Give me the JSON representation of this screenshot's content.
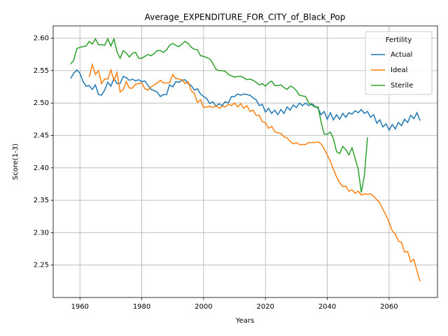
{
  "chart_data": {
    "type": "line",
    "title": "Average_EXPENDITURE_FOR_CITY_of_Black_Pop",
    "x_label": "Years",
    "y_label": "Score(1-3)",
    "legend_title": "Fertility",
    "legend": "upper right",
    "grid": true,
    "x": [
      1957,
      1958,
      1959,
      1960,
      1961,
      1962,
      1963,
      1964,
      1965,
      1966,
      1967,
      1968,
      1969,
      1970,
      1971,
      1972,
      1973,
      1974,
      1975,
      1976,
      1977,
      1978,
      1979,
      1980,
      1981,
      1982,
      1983,
      1984,
      1985,
      1986,
      1987,
      1988,
      1989,
      1990,
      1991,
      1992,
      1993,
      1994,
      1995,
      1996,
      1997,
      1998,
      1999,
      2000,
      2001,
      2002,
      2003,
      2004,
      2005,
      2006,
      2007,
      2008,
      2009,
      2010,
      2011,
      2012,
      2013,
      2014,
      2015,
      2016,
      2017,
      2018,
      2019,
      2020,
      2021,
      2022,
      2023,
      2024,
      2025,
      2026,
      2027,
      2028,
      2029,
      2030,
      2031,
      2032,
      2033,
      2034,
      2035,
      2036,
      2037,
      2038,
      2039,
      2040,
      2041,
      2042,
      2043,
      2044,
      2045,
      2046,
      2047,
      2048,
      2049,
      2050,
      2051,
      2052,
      2053,
      2054,
      2055,
      2056,
      2057,
      2058,
      2059,
      2060,
      2061,
      2062,
      2063,
      2064,
      2065,
      2066,
      2067,
      2068,
      2069,
      2070
    ],
    "series": [
      {
        "name": "Actual",
        "color": "#1f77b4",
        "values": [
          2.538,
          2.546,
          2.551,
          2.546,
          2.533,
          2.526,
          2.527,
          2.521,
          2.528,
          2.513,
          2.512,
          2.52,
          2.532,
          2.526,
          2.538,
          2.53,
          2.53,
          2.541,
          2.539,
          2.535,
          2.537,
          2.534,
          2.536,
          2.533,
          2.534,
          2.527,
          2.521,
          2.519,
          2.517,
          2.51,
          2.513,
          2.513,
          2.528,
          2.525,
          2.533,
          2.532,
          2.535,
          2.536,
          2.53,
          2.527,
          2.52,
          2.522,
          2.514,
          2.51,
          2.507,
          2.499,
          2.502,
          2.495,
          2.499,
          2.496,
          2.502,
          2.5,
          2.51,
          2.51,
          2.514,
          2.512,
          2.514,
          2.513,
          2.512,
          2.508,
          2.505,
          2.496,
          2.498,
          2.486,
          2.492,
          2.484,
          2.489,
          2.482,
          2.49,
          2.484,
          2.494,
          2.489,
          2.497,
          2.493,
          2.5,
          2.496,
          2.5,
          2.496,
          2.499,
          2.495,
          2.492,
          2.482,
          2.487,
          2.475,
          2.485,
          2.474,
          2.482,
          2.475,
          2.484,
          2.478,
          2.485,
          2.483,
          2.488,
          2.485,
          2.49,
          2.484,
          2.487,
          2.478,
          2.482,
          2.469,
          2.474,
          2.463,
          2.468,
          2.458,
          2.467,
          2.46,
          2.47,
          2.465,
          2.475,
          2.47,
          2.481,
          2.476,
          2.485,
          2.473
        ]
      },
      {
        "name": "Ideal",
        "color": "#ff7f0e",
        "values": [
          null,
          null,
          null,
          null,
          null,
          null,
          2.54,
          2.559,
          2.544,
          2.55,
          2.53,
          2.537,
          2.537,
          2.551,
          2.535,
          2.547,
          2.517,
          2.521,
          2.533,
          2.523,
          2.523,
          2.529,
          2.53,
          2.531,
          2.522,
          2.52,
          2.525,
          2.528,
          2.531,
          2.535,
          2.531,
          2.531,
          2.531,
          2.544,
          2.538,
          2.537,
          2.536,
          2.53,
          2.533,
          2.519,
          2.515,
          2.501,
          2.505,
          2.493,
          2.494,
          2.495,
          2.493,
          2.496,
          2.492,
          2.495,
          2.494,
          2.498,
          2.496,
          2.5,
          2.494,
          2.499,
          2.492,
          2.496,
          2.487,
          2.489,
          2.481,
          2.481,
          2.471,
          2.47,
          2.461,
          2.464,
          2.456,
          2.454,
          2.453,
          2.448,
          2.446,
          2.441,
          2.437,
          2.439,
          2.436,
          2.436,
          2.436,
          2.439,
          2.439,
          2.439,
          2.44,
          2.437,
          2.429,
          2.42,
          2.41,
          2.398,
          2.386,
          2.377,
          2.371,
          2.372,
          2.364,
          2.366,
          2.361,
          2.364,
          2.358,
          2.36,
          2.359,
          2.36,
          2.356,
          2.351,
          2.346,
          2.336,
          2.327,
          2.316,
          2.303,
          2.298,
          2.287,
          2.285,
          2.27,
          2.271,
          2.255,
          2.259,
          2.241,
          2.225
        ]
      },
      {
        "name": "Sterile",
        "color": "#2ca02c",
        "values": [
          2.56,
          2.566,
          2.584,
          2.586,
          2.587,
          2.588,
          2.595,
          2.591,
          2.599,
          2.59,
          2.59,
          2.589,
          2.599,
          2.588,
          2.599,
          2.579,
          2.569,
          2.581,
          2.577,
          2.571,
          2.577,
          2.578,
          2.569,
          2.569,
          2.572,
          2.575,
          2.573,
          2.576,
          2.581,
          2.581,
          2.578,
          2.582,
          2.589,
          2.592,
          2.589,
          2.587,
          2.591,
          2.595,
          2.592,
          2.586,
          2.583,
          2.582,
          2.573,
          2.572,
          2.57,
          2.568,
          2.561,
          2.552,
          2.55,
          2.55,
          2.549,
          2.544,
          2.542,
          2.54,
          2.541,
          2.541,
          2.539,
          2.536,
          2.537,
          2.535,
          2.532,
          2.528,
          2.53,
          2.526,
          2.531,
          2.534,
          2.527,
          2.527,
          2.528,
          2.524,
          2.521,
          2.526,
          2.524,
          2.519,
          2.512,
          2.511,
          2.51,
          2.5,
          2.497,
          2.494,
          2.494,
          2.471,
          2.452,
          2.452,
          2.455,
          2.445,
          2.425,
          2.422,
          2.433,
          2.428,
          2.42,
          2.431,
          2.415,
          2.398,
          2.362,
          2.388,
          2.447,
          null,
          null,
          null,
          null,
          null,
          null,
          null,
          null,
          null,
          null,
          null,
          null,
          null,
          null,
          null,
          null,
          null
        ]
      }
    ],
    "xlim": [
      1951.35,
      2075.65
    ],
    "xticks": [
      1960,
      1980,
      2000,
      2020,
      2040,
      2060
    ],
    "ylim": [
      2.2,
      2.619
    ],
    "yticks": [
      2.25,
      {
        "value": 2.3,
        "label": "2.30"
      },
      2.35,
      {
        "value": 2.4,
        "label": "2.40"
      },
      2.45,
      {
        "value": 2.5,
        "label": "2.50"
      },
      2.55,
      {
        "value": 2.6,
        "label": "2.60"
      }
    ]
  }
}
